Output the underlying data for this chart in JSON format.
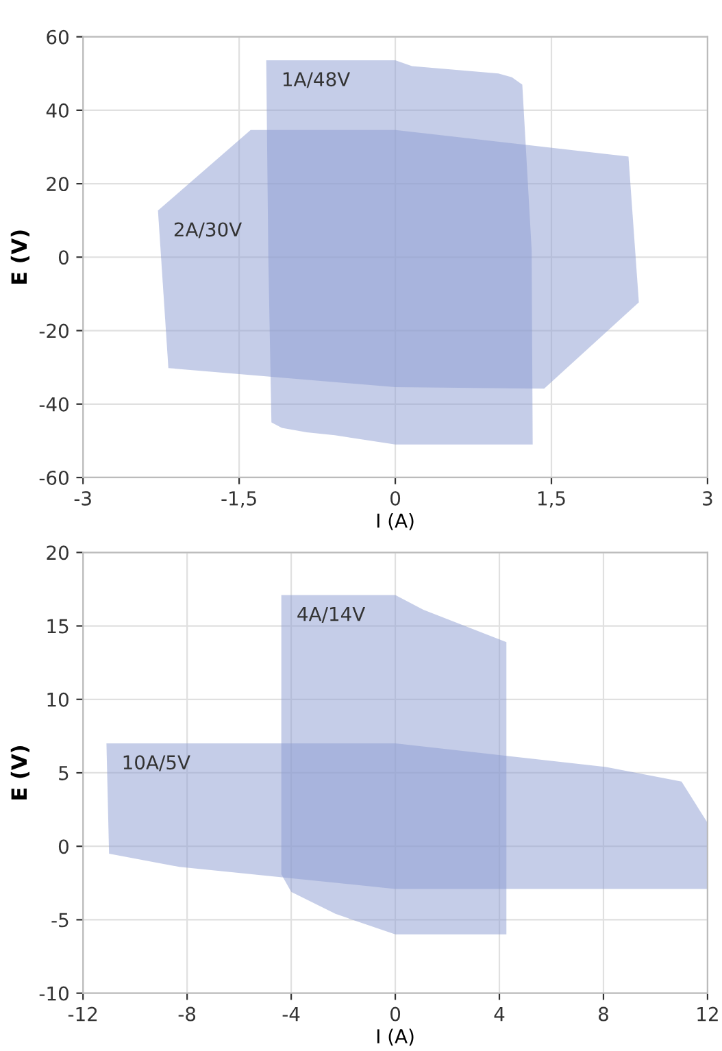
{
  "chart_data": [
    {
      "type": "area",
      "xlabel": "I (A)",
      "ylabel": "E (V)",
      "xlim": [
        -3,
        3
      ],
      "ylim": [
        -60,
        60
      ],
      "xticks": [
        {
          "value": -3,
          "label": "-3"
        },
        {
          "value": -1.5,
          "label": "-1,5"
        },
        0,
        {
          "value": 1.5,
          "label": "1,5"
        },
        3
      ],
      "yticks": [
        {
          "value": -60,
          "label": "-60"
        },
        {
          "value": -40,
          "label": "-40"
        },
        {
          "value": -20,
          "label": "-20"
        },
        0,
        20,
        40,
        60
      ],
      "grid": true,
      "series": [
        {
          "name": "1A/48V",
          "color": "#8c9bd2",
          "x": [
            -1.24,
            0,
            0.16,
            0.99,
            1.12,
            1.22,
            1.31,
            1.32,
            0,
            -0.58,
            -0.85,
            -1.09,
            -1.19,
            -1.22
          ],
          "values": [
            53.6,
            53.6,
            52,
            50,
            49,
            47,
            2,
            -51,
            -51,
            -48.5,
            -47.7,
            -46.5,
            -45,
            0
          ]
        },
        {
          "name": "2A/30V",
          "color": "#8c9bd2",
          "x": [
            -2.28,
            -1.39,
            0,
            2.24,
            2.34,
            1.43,
            0,
            -2.18
          ],
          "values": [
            12.7,
            34.6,
            34.6,
            27.4,
            -12.3,
            -35.8,
            -35.4,
            -30.2
          ]
        }
      ]
    },
    {
      "type": "area",
      "xlabel": "I (A)",
      "ylabel": "E (V)",
      "xlim": [
        -12,
        12
      ],
      "ylim": [
        -10,
        20
      ],
      "xticks": [
        {
          "value": -12,
          "label": "-12"
        },
        {
          "value": -8,
          "label": "-8"
        },
        {
          "value": -4,
          "label": "-4"
        },
        0,
        4,
        8,
        12
      ],
      "yticks": [
        {
          "value": -10,
          "label": "-10"
        },
        {
          "value": -5,
          "label": "-5"
        },
        0,
        5,
        10,
        15,
        20
      ],
      "grid": true,
      "series": [
        {
          "name": "4A/14V",
          "color": "#8c9bd2",
          "x": [
            -4.38,
            0,
            1.08,
            4.27,
            4.27,
            0,
            -2.3,
            -4.0,
            -4.38
          ],
          "values": [
            17.1,
            17.1,
            16.1,
            13.9,
            -6,
            -6,
            -4.6,
            -3.1,
            -1.9
          ]
        },
        {
          "name": "10A/5V",
          "color": "#8c9bd2",
          "x": [
            -11.1,
            0,
            8.1,
            11.0,
            12,
            12,
            0,
            -8.3,
            -11
          ],
          "values": [
            7,
            7,
            5.4,
            4.4,
            1.6,
            -2.9,
            -2.9,
            -1.4,
            -0.5
          ]
        }
      ]
    }
  ]
}
